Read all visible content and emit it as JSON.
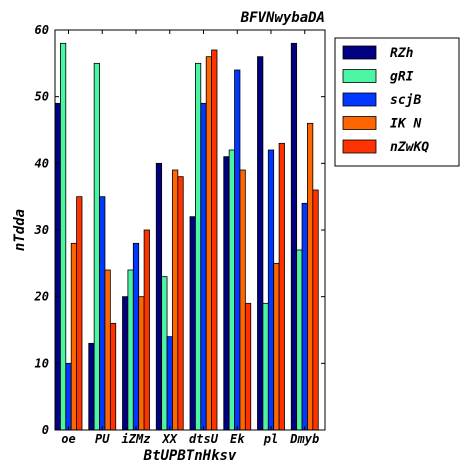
{
  "chart_data": {
    "type": "bar",
    "title": "BFVNwybaDA",
    "xlabel": "BtUPBTnHksv",
    "ylabel": "nTdda",
    "categories": [
      "oe",
      "PU",
      "iZMz",
      "XX",
      "dtsU",
      "Ek",
      "pl",
      "Dmyb"
    ],
    "ylim": [
      0,
      60
    ],
    "yticks": [
      0,
      10,
      20,
      30,
      40,
      50,
      60
    ],
    "grid": false,
    "legend_position": "outside-right",
    "series": [
      {
        "name": "RZh",
        "color": "#000080",
        "values": [
          49,
          13,
          20,
          40,
          32,
          41,
          56,
          58
        ]
      },
      {
        "name": "gRI",
        "color": "#4cf5a4",
        "values": [
          58,
          55,
          24,
          23,
          55,
          42,
          19,
          27
        ]
      },
      {
        "name": "scjB",
        "color": "#0038ff",
        "values": [
          10,
          35,
          28,
          14,
          49,
          54,
          42,
          34
        ]
      },
      {
        "name": "IK N",
        "color": "#ff6600",
        "values": [
          28,
          24,
          20,
          39,
          56,
          39,
          25,
          46
        ]
      },
      {
        "name": "nZwKQ",
        "color": "#ff3300",
        "values": [
          35,
          16,
          30,
          38,
          57,
          19,
          43,
          36
        ]
      }
    ]
  }
}
